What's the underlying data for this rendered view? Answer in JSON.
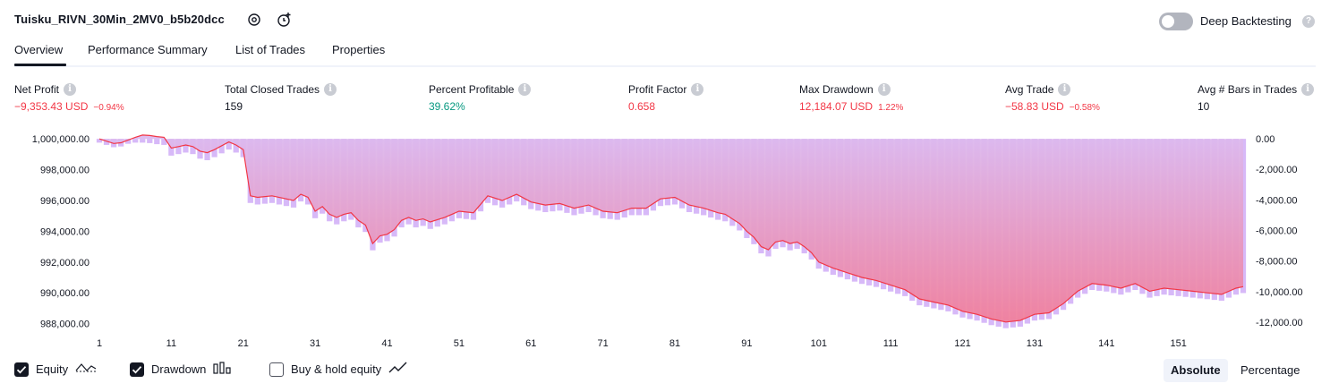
{
  "header": {
    "strategy_title": "Tuisku_RIVN_30Min_2MV0_b5b20dcc",
    "deep_backtesting_label": "Deep Backtesting",
    "deep_backtesting_enabled": false
  },
  "tabs": [
    {
      "label": "Overview",
      "active": true
    },
    {
      "label": "Performance Summary",
      "active": false
    },
    {
      "label": "List of Trades",
      "active": false
    },
    {
      "label": "Properties",
      "active": false
    }
  ],
  "metrics": [
    {
      "label": "Net Profit",
      "value": "−9,353.43 USD",
      "sub": "−0.94%",
      "color": "#f23645"
    },
    {
      "label": "Total Closed Trades",
      "value": "159",
      "sub": "",
      "color": "#131722"
    },
    {
      "label": "Percent Profitable",
      "value": "39.62%",
      "sub": "",
      "color": "#089981"
    },
    {
      "label": "Profit Factor",
      "value": "0.658",
      "sub": "",
      "color": "#f23645"
    },
    {
      "label": "Max Drawdown",
      "value": "12,184.07 USD",
      "sub": "1.22%",
      "color": "#f23645"
    },
    {
      "label": "Avg Trade",
      "value": "−58.83 USD",
      "sub": "−0.58%",
      "color": "#f23645"
    },
    {
      "label": "Avg # Bars in Trades",
      "value": "10",
      "sub": "",
      "color": "#131722"
    }
  ],
  "legend": {
    "equity_label": "Equity",
    "equity_checked": true,
    "drawdown_label": "Drawdown",
    "drawdown_checked": true,
    "buyhold_label": "Buy & hold equity",
    "buyhold_checked": false
  },
  "scale_toggle": {
    "absolute_label": "Absolute",
    "percentage_label": "Percentage",
    "selected": "Absolute"
  },
  "colors": {
    "equity_line": "#f23645",
    "equity_line_profit": "#2962ff",
    "drawdown_bar": "#c9a2f5",
    "fill_top": "#d8b8ef",
    "fill_bottom": "#f07f9c",
    "text": "#131722",
    "loss": "#f23645",
    "profit": "#089981"
  },
  "chart_data": {
    "type": "area",
    "x_ticks": [
      "1",
      "11",
      "21",
      "31",
      "41",
      "51",
      "61",
      "71",
      "81",
      "91",
      "101",
      "111",
      "121",
      "131",
      "141",
      "151"
    ],
    "left_axis": {
      "ticks": [
        "1,000,000.00",
        "998,000.00",
        "996,000.00",
        "994,000.00",
        "992,000.00",
        "990,000.00",
        "988,000.00"
      ],
      "ylim": [
        987800,
        1000300
      ]
    },
    "right_axis": {
      "ticks": [
        "0.00",
        "-2,000.00",
        "-4,000.00",
        "-6,000.00",
        "-8,000.00",
        "-10,000.00",
        "-12,000.00"
      ],
      "ylim": [
        -12300,
        300
      ]
    },
    "equity_x": [
      1,
      3,
      4,
      6,
      7,
      8,
      9,
      10,
      11,
      12,
      13,
      14,
      15,
      16,
      17,
      19,
      20,
      21,
      22,
      23,
      25,
      28,
      29,
      30,
      31,
      32,
      33,
      34,
      35,
      36,
      37,
      38,
      39,
      40,
      41,
      42,
      43,
      44,
      45,
      46,
      47,
      49,
      51,
      53,
      55,
      57,
      59,
      61,
      63,
      65,
      67,
      69,
      71,
      73,
      75,
      77,
      79,
      81,
      83,
      85,
      87,
      88,
      89,
      90,
      91,
      92,
      93,
      94,
      95,
      96,
      97,
      98,
      99,
      100,
      101,
      103,
      105,
      107,
      109,
      111,
      113,
      115,
      117,
      119,
      121,
      123,
      125,
      127,
      129,
      131,
      133,
      135,
      137,
      139,
      141,
      143,
      145,
      147,
      149,
      151,
      153,
      155,
      157,
      159,
      160
    ],
    "equity_y": [
      1000000,
      999700,
      999750,
      1000100,
      1000250,
      1000220,
      1000150,
      1000100,
      999400,
      999500,
      999600,
      999500,
      999200,
      999100,
      999300,
      999800,
      999600,
      999300,
      996300,
      996200,
      996300,
      996000,
      996400,
      996200,
      995300,
      995600,
      995100,
      994900,
      995100,
      995200,
      994700,
      994400,
      993200,
      993700,
      993800,
      994100,
      994700,
      994900,
      994700,
      994800,
      994600,
      994900,
      995300,
      995200,
      996300,
      996000,
      996400,
      995900,
      995700,
      995800,
      995500,
      995700,
      995300,
      995200,
      995500,
      995500,
      996100,
      996200,
      995700,
      995500,
      995200,
      995100,
      994800,
      994500,
      994000,
      993600,
      993000,
      992800,
      993300,
      993400,
      993200,
      993300,
      993000,
      992600,
      992000,
      991600,
      991300,
      991000,
      990800,
      990500,
      990200,
      989600,
      989400,
      989200,
      988800,
      988600,
      988300,
      988100,
      988200,
      988600,
      988700,
      989300,
      990100,
      990600,
      990500,
      990300,
      990600,
      990100,
      990300,
      990200,
      990100,
      990000,
      989900,
      990300,
      990400
    ]
  }
}
